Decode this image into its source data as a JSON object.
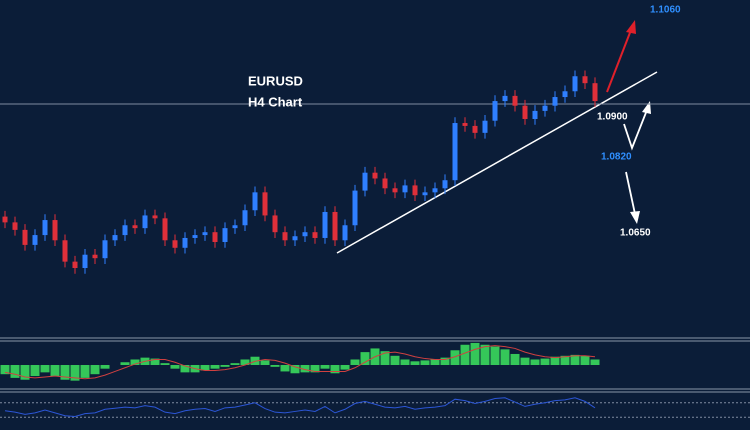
{
  "chart_data": [
    {
      "type": "candlestick",
      "title": "EURUSD",
      "subtitle": "H4 Chart",
      "up_color": "#2f7fff",
      "down_color": "#e0303a",
      "ylim": [
        1.05,
        1.108
      ],
      "open": [
        1.0705,
        1.0695,
        1.0682,
        1.0656,
        1.0673,
        1.0699,
        1.0664,
        1.0627,
        1.0616,
        1.0639,
        1.0633,
        1.0664,
        1.0673,
        1.069,
        1.0685,
        1.0707,
        1.0702,
        1.0664,
        1.0651,
        1.0668,
        1.0673,
        1.0678,
        1.0661,
        1.0685,
        1.069,
        1.0716,
        1.0747,
        1.0707,
        1.0678,
        1.0664,
        1.0671,
        1.0678,
        1.0668,
        1.0713,
        1.0664,
        1.069,
        1.075,
        1.0781,
        1.0771,
        1.0754,
        1.0747,
        1.0759,
        1.0742,
        1.0747,
        1.0754,
        1.0768,
        1.0867,
        1.0862,
        1.085,
        1.0871,
        1.0905,
        1.0914,
        1.0897,
        1.0874,
        1.0888,
        1.0897,
        1.0912,
        1.0922,
        1.0948,
        1.0936
      ],
      "high": [
        1.0715,
        1.0705,
        1.0692,
        1.0683,
        1.0709,
        1.0709,
        1.0674,
        1.0637,
        1.0649,
        1.0649,
        1.0674,
        1.0683,
        1.07,
        1.07,
        1.0717,
        1.0717,
        1.0712,
        1.0674,
        1.0678,
        1.0683,
        1.0688,
        1.0688,
        1.0695,
        1.07,
        1.0726,
        1.0757,
        1.0757,
        1.0717,
        1.0688,
        1.0681,
        1.0688,
        1.0688,
        1.0723,
        1.0723,
        1.07,
        1.076,
        1.0791,
        1.0791,
        1.0781,
        1.0764,
        1.0769,
        1.0769,
        1.0757,
        1.0764,
        1.0778,
        1.0877,
        1.0877,
        1.0872,
        1.0881,
        1.0915,
        1.0924,
        1.0924,
        1.0907,
        1.0898,
        1.0907,
        1.0922,
        1.0932,
        1.0958,
        1.0958,
        1.0946
      ],
      "low": [
        1.0685,
        1.0672,
        1.0646,
        1.0646,
        1.0663,
        1.0654,
        1.0617,
        1.0606,
        1.0606,
        1.0623,
        1.0623,
        1.0654,
        1.0663,
        1.0675,
        1.0675,
        1.0692,
        1.0654,
        1.0641,
        1.0641,
        1.0658,
        1.0663,
        1.0651,
        1.0651,
        1.0675,
        1.068,
        1.0706,
        1.0697,
        1.0668,
        1.0654,
        1.0654,
        1.0661,
        1.0658,
        1.0658,
        1.0654,
        1.0654,
        1.068,
        1.074,
        1.0761,
        1.0744,
        1.0737,
        1.0737,
        1.0732,
        1.0732,
        1.0737,
        1.0744,
        1.0758,
        1.0852,
        1.084,
        1.084,
        1.0861,
        1.0895,
        1.0887,
        1.0864,
        1.0864,
        1.0878,
        1.0887,
        1.0902,
        1.0912,
        1.0926,
        1.0895
      ],
      "close": [
        1.0695,
        1.0682,
        1.0656,
        1.0673,
        1.0699,
        1.0664,
        1.0627,
        1.0616,
        1.0639,
        1.0633,
        1.0664,
        1.0673,
        1.069,
        1.0685,
        1.0707,
        1.0702,
        1.0664,
        1.0651,
        1.0668,
        1.0673,
        1.0678,
        1.0661,
        1.0685,
        1.069,
        1.0716,
        1.0747,
        1.0707,
        1.0678,
        1.0664,
        1.0671,
        1.0678,
        1.0668,
        1.0713,
        1.0664,
        1.069,
        1.075,
        1.0781,
        1.0771,
        1.0754,
        1.0747,
        1.0759,
        1.0742,
        1.0747,
        1.0754,
        1.0768,
        1.0867,
        1.0862,
        1.085,
        1.0871,
        1.0905,
        1.0914,
        1.0897,
        1.0874,
        1.0888,
        1.0897,
        1.0912,
        1.0922,
        1.0948,
        1.0936,
        1.0905
      ],
      "levels": [
        {
          "value": 1.106,
          "label": "1.1060",
          "color": "#2f8fff"
        },
        {
          "value": 1.09,
          "label": "1.0900",
          "color": "#ffffff",
          "line": true
        },
        {
          "value": 1.082,
          "label": "1.0820",
          "color": "#2f8fff"
        },
        {
          "value": 1.065,
          "label": "1.0650",
          "color": "#ffffff"
        }
      ]
    },
    {
      "type": "macd",
      "color": "#35c759",
      "signal_color": "#d04040",
      "ylim": [
        -25,
        25
      ],
      "histogram": [
        -10,
        -14,
        -16,
        -12,
        -8,
        -12,
        -16,
        -17,
        -14,
        -10,
        -4,
        0,
        3,
        6,
        8,
        7,
        2,
        -4,
        -8,
        -8,
        -6,
        -4,
        -2,
        2,
        6,
        9,
        5,
        -2,
        -7,
        -9,
        -8,
        -8,
        -4,
        -9,
        -5,
        6,
        14,
        18,
        15,
        10,
        6,
        4,
        5,
        6,
        8,
        16,
        22,
        24,
        22,
        20,
        17,
        12,
        8,
        6,
        7,
        9,
        10,
        11,
        10,
        6
      ],
      "signal": [
        -8,
        -10,
        -13,
        -14,
        -13,
        -12,
        -13,
        -14,
        -15,
        -14,
        -11,
        -7,
        -3,
        1,
        4,
        6,
        6,
        3,
        -1,
        -4,
        -6,
        -6,
        -5,
        -3,
        0,
        4,
        6,
        5,
        2,
        -2,
        -5,
        -7,
        -7,
        -7,
        -7,
        -3,
        3,
        9,
        13,
        14,
        12,
        9,
        7,
        6,
        6,
        9,
        13,
        17,
        20,
        21,
        20,
        18,
        14,
        11,
        9,
        8,
        9,
        10,
        10,
        9
      ]
    },
    {
      "type": "line",
      "color": "#2c56d6",
      "ylim": [
        0,
        100
      ],
      "levels": [
        70,
        30
      ],
      "values": [
        48,
        44,
        38,
        42,
        50,
        42,
        34,
        32,
        40,
        42,
        52,
        55,
        58,
        56,
        62,
        58,
        44,
        40,
        48,
        52,
        54,
        46,
        56,
        58,
        64,
        70,
        54,
        44,
        42,
        46,
        50,
        46,
        60,
        42,
        52,
        68,
        74,
        66,
        58,
        56,
        60,
        52,
        56,
        58,
        62,
        80,
        76,
        68,
        74,
        82,
        84,
        72,
        60,
        66,
        70,
        76,
        78,
        84,
        74,
        56
      ]
    }
  ]
}
